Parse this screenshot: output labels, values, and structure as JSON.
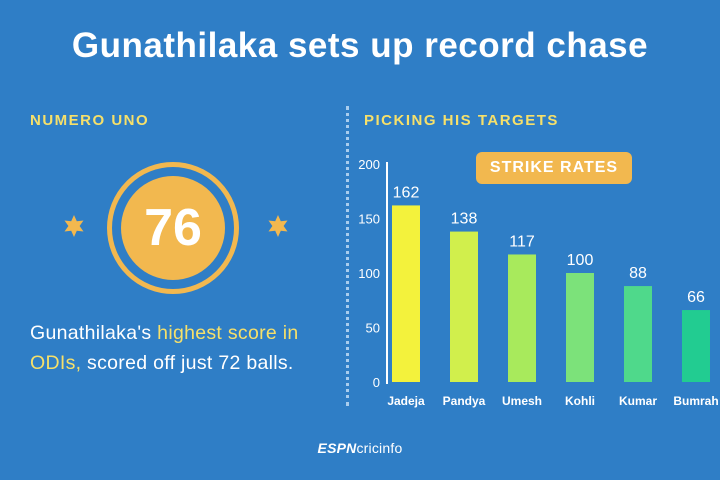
{
  "title": "Gunathilaka sets up record chase",
  "left_panel": {
    "heading": "NUMERO UNO",
    "score": "76",
    "desc_a": "Gunathilaka's ",
    "desc_highlight": "highest score in ODIs,",
    "desc_b": " scored off just 72 balls."
  },
  "right_panel": {
    "heading": "PICKING HIS TARGETS",
    "badge": "STRIKE RATES"
  },
  "brand": {
    "part1": "ESPN",
    "part2": "cricinfo"
  },
  "colors": {
    "background": "#2f7ec6",
    "accent": "#f2b84f",
    "highlight_text": "#f6e06a",
    "bar_colors": [
      "#f3f23c",
      "#d1ef4c",
      "#a8ea5c",
      "#7ce27a",
      "#4fd98b",
      "#22cc91"
    ]
  },
  "chart_data": {
    "type": "bar",
    "categories": [
      "Jadeja",
      "Pandya",
      "Umesh",
      "Kohli",
      "Kumar",
      "Bumrah"
    ],
    "values": [
      162,
      138,
      117,
      100,
      88,
      66
    ],
    "ylim": [
      0,
      200
    ],
    "yticks": [
      0,
      50,
      100,
      150,
      200
    ],
    "grid": false,
    "title": "STRIKE RATES"
  }
}
